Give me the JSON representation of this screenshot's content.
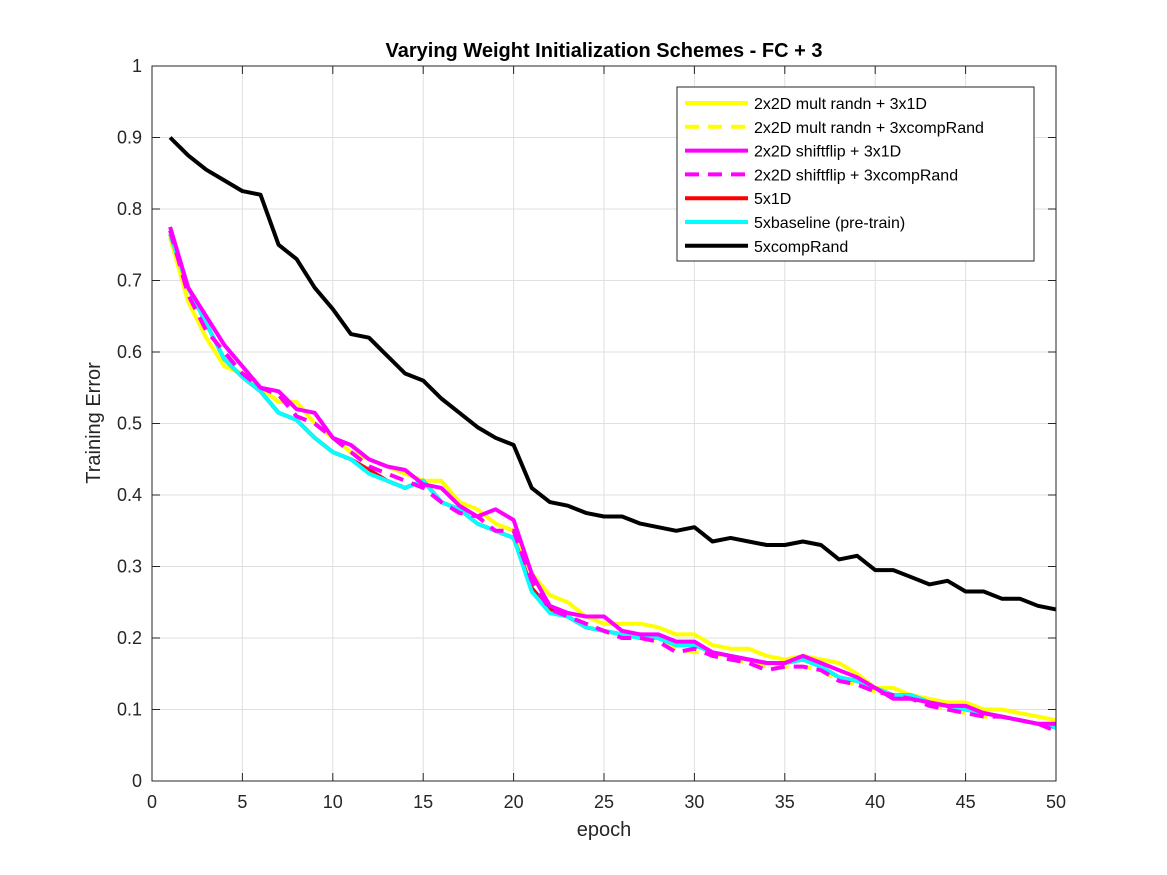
{
  "chart_data": {
    "type": "line",
    "title": "Varying Weight Initialization Schemes - FC + 3",
    "xlabel": "epoch",
    "ylabel": "Training Error",
    "xlim": [
      0,
      50
    ],
    "ylim": [
      0,
      1
    ],
    "xticks": [
      "0",
      "5",
      "10",
      "15",
      "20",
      "25",
      "30",
      "35",
      "40",
      "45",
      "50"
    ],
    "yticks": [
      "0",
      "0.1",
      "0.2",
      "0.3",
      "0.4",
      "0.5",
      "0.6",
      "0.7",
      "0.8",
      "0.9",
      "1"
    ],
    "grid": true,
    "legend_position": "top-right",
    "x": [
      1,
      2,
      3,
      4,
      5,
      6,
      7,
      8,
      9,
      10,
      11,
      12,
      13,
      14,
      15,
      16,
      17,
      18,
      19,
      20,
      21,
      22,
      23,
      24,
      25,
      26,
      27,
      28,
      29,
      30,
      31,
      32,
      33,
      34,
      35,
      36,
      37,
      38,
      39,
      40,
      41,
      42,
      43,
      44,
      45,
      46,
      47,
      48,
      49,
      50
    ],
    "series": [
      {
        "name": "2x2D mult randn + 3x1D",
        "color": "#ffff00",
        "dash": "solid",
        "values": [
          0.76,
          0.67,
          0.62,
          0.58,
          0.57,
          0.55,
          0.53,
          0.53,
          0.5,
          0.48,
          0.46,
          0.45,
          0.44,
          0.43,
          0.42,
          0.42,
          0.39,
          0.38,
          0.36,
          0.35,
          0.29,
          0.26,
          0.25,
          0.23,
          0.22,
          0.22,
          0.22,
          0.215,
          0.205,
          0.205,
          0.19,
          0.185,
          0.185,
          0.175,
          0.17,
          0.175,
          0.17,
          0.165,
          0.15,
          0.13,
          0.13,
          0.12,
          0.115,
          0.11,
          0.11,
          0.1,
          0.1,
          0.095,
          0.09,
          0.085
        ]
      },
      {
        "name": "2x2D mult randn + 3xcompRand",
        "color": "#ffff00",
        "dash": "dashed",
        "values": [
          0.77,
          0.68,
          0.63,
          0.6,
          0.57,
          0.55,
          0.54,
          0.51,
          0.5,
          0.48,
          0.46,
          0.44,
          0.43,
          0.42,
          0.41,
          0.39,
          0.38,
          0.37,
          0.35,
          0.35,
          0.28,
          0.24,
          0.23,
          0.22,
          0.21,
          0.2,
          0.2,
          0.195,
          0.185,
          0.18,
          0.18,
          0.17,
          0.165,
          0.16,
          0.16,
          0.16,
          0.155,
          0.14,
          0.135,
          0.125,
          0.12,
          0.115,
          0.11,
          0.1,
          0.095,
          0.09,
          0.09,
          0.085,
          0.08,
          0.075
        ]
      },
      {
        "name": "2x2D shiftflip + 3x1D",
        "color": "#ff00ff",
        "dash": "solid",
        "values": [
          0.775,
          0.69,
          0.65,
          0.61,
          0.58,
          0.55,
          0.545,
          0.52,
          0.515,
          0.48,
          0.47,
          0.45,
          0.44,
          0.435,
          0.415,
          0.41,
          0.385,
          0.37,
          0.38,
          0.365,
          0.29,
          0.245,
          0.235,
          0.23,
          0.23,
          0.21,
          0.205,
          0.205,
          0.195,
          0.195,
          0.18,
          0.175,
          0.17,
          0.165,
          0.165,
          0.175,
          0.165,
          0.155,
          0.145,
          0.13,
          0.115,
          0.115,
          0.11,
          0.105,
          0.105,
          0.095,
          0.09,
          0.085,
          0.08,
          0.08
        ]
      },
      {
        "name": "2x2D shiftflip + 3xcompRand",
        "color": "#ff00ff",
        "dash": "dashed",
        "values": [
          0.77,
          0.68,
          0.63,
          0.6,
          0.57,
          0.55,
          0.54,
          0.51,
          0.5,
          0.48,
          0.46,
          0.44,
          0.43,
          0.42,
          0.41,
          0.39,
          0.375,
          0.37,
          0.35,
          0.35,
          0.28,
          0.24,
          0.23,
          0.22,
          0.21,
          0.2,
          0.2,
          0.195,
          0.18,
          0.185,
          0.175,
          0.17,
          0.165,
          0.155,
          0.16,
          0.16,
          0.155,
          0.14,
          0.135,
          0.125,
          0.12,
          0.115,
          0.105,
          0.1,
          0.095,
          0.09,
          0.09,
          0.085,
          0.08,
          0.07
        ]
      },
      {
        "name": "5x1D",
        "color": "#ff0000",
        "dash": "solid",
        "values": [
          0.765,
          0.69,
          0.64,
          0.59,
          0.565,
          0.545,
          0.515,
          0.505,
          0.48,
          0.46,
          0.45,
          0.435,
          0.42,
          0.41,
          0.42,
          0.39,
          0.38,
          0.36,
          0.35,
          0.34,
          0.27,
          0.24,
          0.23,
          0.215,
          0.21,
          0.205,
          0.2,
          0.2,
          0.19,
          0.19,
          0.18,
          0.175,
          0.17,
          0.165,
          0.165,
          0.17,
          0.16,
          0.145,
          0.14,
          0.13,
          0.12,
          0.12,
          0.11,
          0.105,
          0.1,
          0.095,
          0.09,
          0.085,
          0.08,
          0.075
        ]
      },
      {
        "name": "5xbaseline (pre-train)",
        "color": "#00ffff",
        "dash": "solid",
        "values": [
          0.765,
          0.69,
          0.64,
          0.59,
          0.565,
          0.545,
          0.515,
          0.505,
          0.48,
          0.46,
          0.45,
          0.43,
          0.42,
          0.41,
          0.42,
          0.39,
          0.38,
          0.36,
          0.35,
          0.34,
          0.265,
          0.235,
          0.23,
          0.215,
          0.21,
          0.205,
          0.2,
          0.2,
          0.19,
          0.19,
          0.18,
          0.175,
          0.17,
          0.165,
          0.165,
          0.17,
          0.16,
          0.145,
          0.14,
          0.13,
          0.12,
          0.12,
          0.11,
          0.105,
          0.1,
          0.095,
          0.09,
          0.085,
          0.08,
          0.075
        ]
      },
      {
        "name": "5xcompRand",
        "color": "#000000",
        "dash": "solid",
        "values": [
          0.9,
          0.875,
          0.855,
          0.84,
          0.825,
          0.82,
          0.75,
          0.73,
          0.69,
          0.66,
          0.625,
          0.62,
          0.595,
          0.57,
          0.56,
          0.535,
          0.515,
          0.495,
          0.48,
          0.47,
          0.41,
          0.39,
          0.385,
          0.375,
          0.37,
          0.37,
          0.36,
          0.355,
          0.35,
          0.355,
          0.335,
          0.34,
          0.335,
          0.33,
          0.33,
          0.335,
          0.33,
          0.31,
          0.315,
          0.295,
          0.295,
          0.285,
          0.275,
          0.28,
          0.265,
          0.265,
          0.255,
          0.255,
          0.245,
          0.24
        ]
      }
    ]
  }
}
